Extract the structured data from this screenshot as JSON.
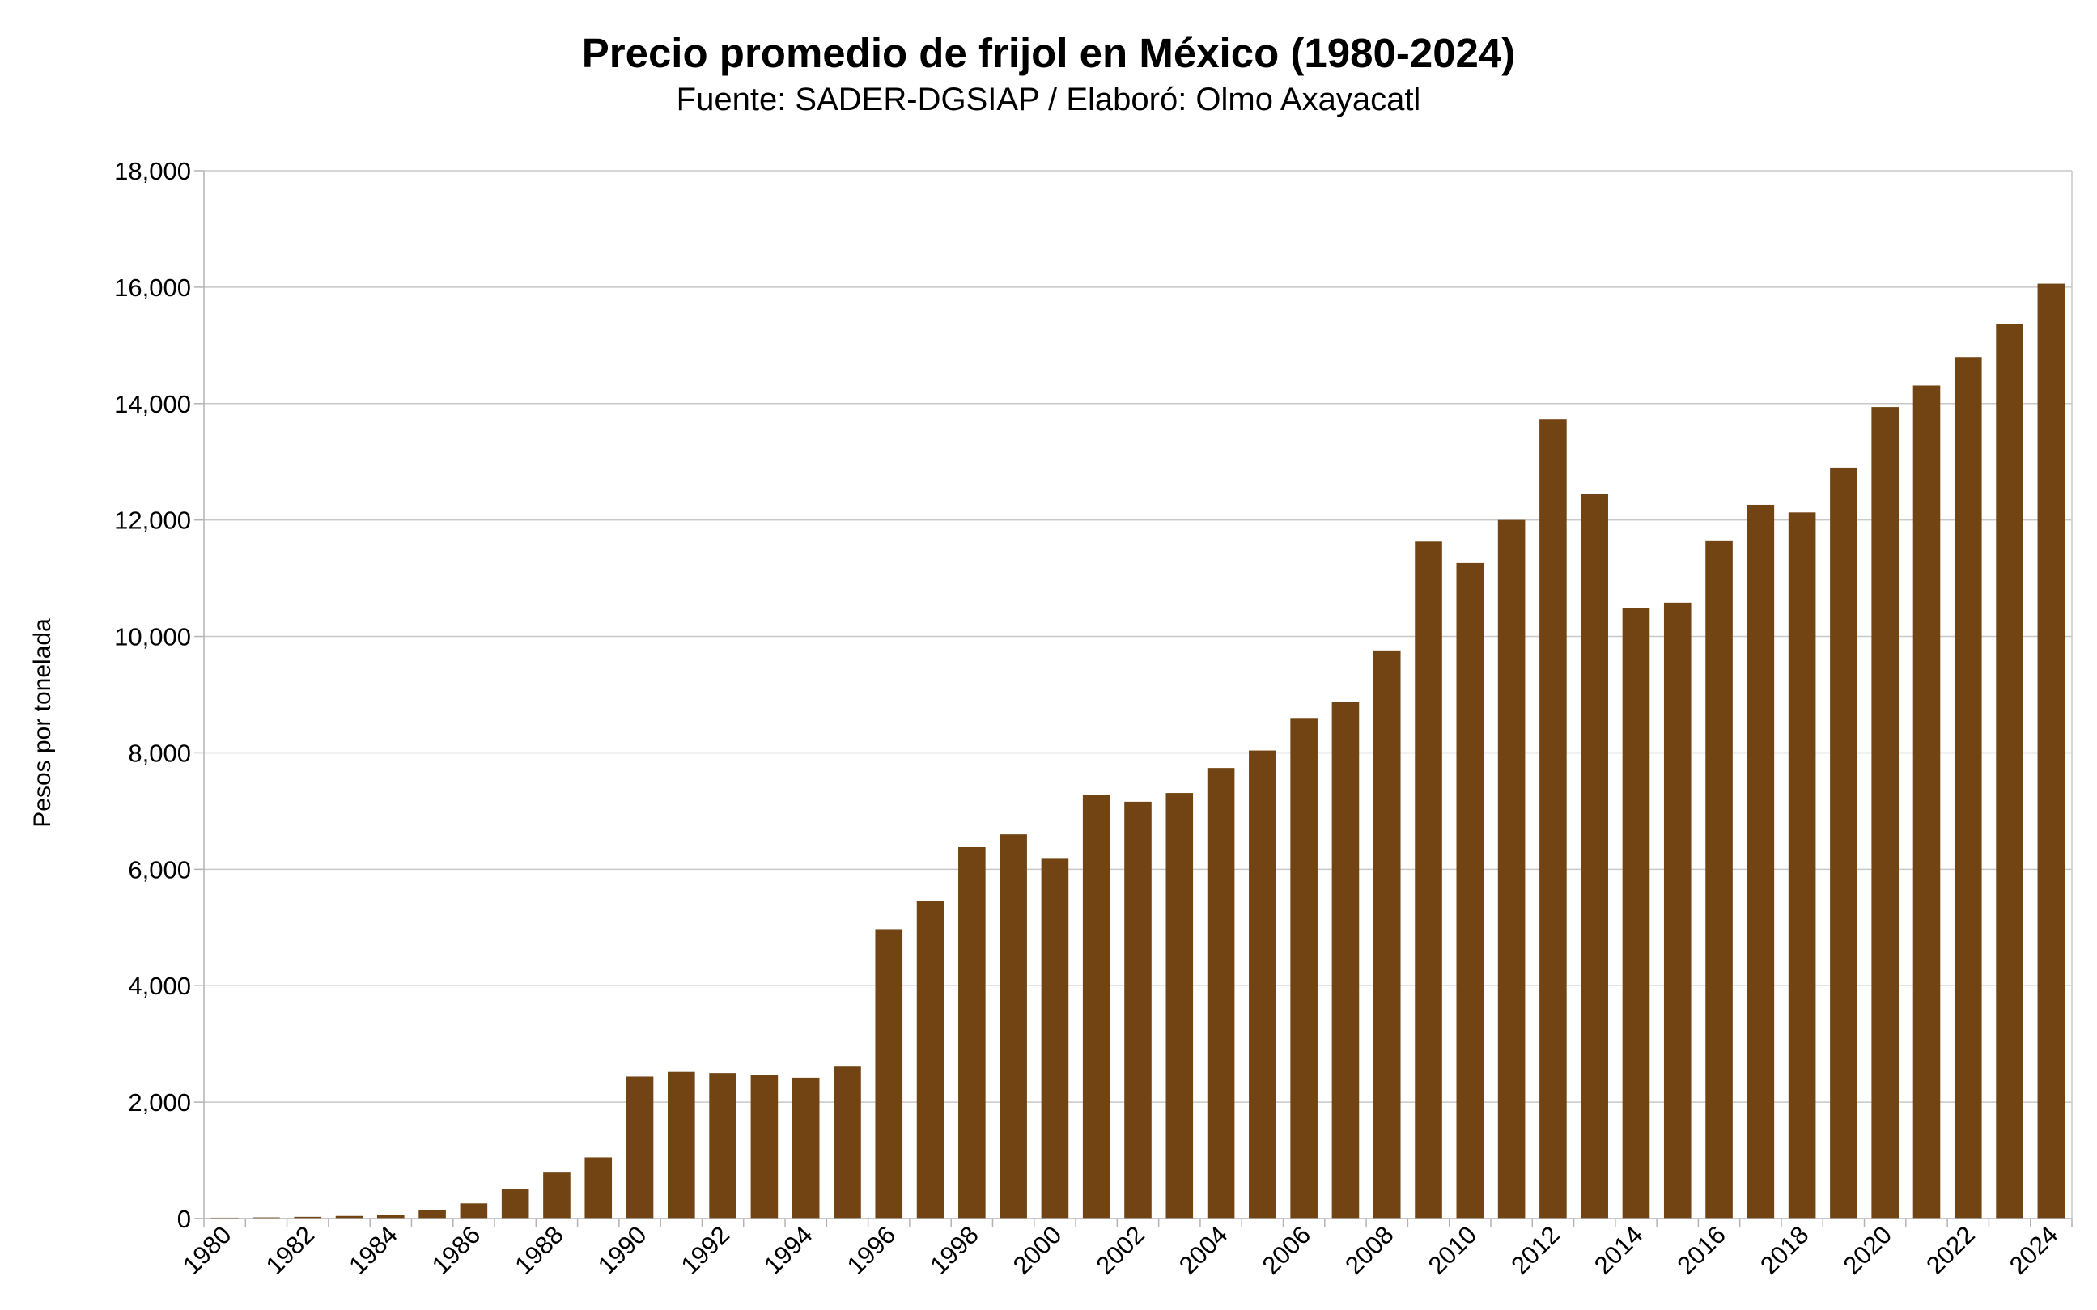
{
  "chart_data": {
    "type": "bar",
    "title": "Precio promedio de frijol en México (1980-2024)",
    "subtitle": "Fuente: SADER-DGSIAP / Elaboró: Olmo Axayacatl",
    "xlabel": "",
    "ylabel": "Pesos por tonelada",
    "ylim": [
      0,
      18000
    ],
    "yticks": [
      0,
      2000,
      4000,
      6000,
      8000,
      10000,
      12000,
      14000,
      16000,
      18000
    ],
    "ytick_labels": [
      "0",
      "2,000",
      "4,000",
      "6,000",
      "8,000",
      "10,000",
      "12,000",
      "14,000",
      "16,000",
      "18,000"
    ],
    "grid": true,
    "bar_color": "#734413",
    "categories": [
      "1980",
      "1981",
      "1982",
      "1983",
      "1984",
      "1985",
      "1986",
      "1987",
      "1988",
      "1989",
      "1990",
      "1991",
      "1992",
      "1993",
      "1994",
      "1995",
      "1996",
      "1997",
      "1998",
      "1999",
      "2000",
      "2001",
      "2002",
      "2003",
      "2004",
      "2005",
      "2006",
      "2007",
      "2008",
      "2009",
      "2010",
      "2011",
      "2012",
      "2013",
      "2014",
      "2015",
      "2016",
      "2017",
      "2018",
      "2019",
      "2020",
      "2021",
      "2022",
      "2023",
      "2024"
    ],
    "xtick_labels": [
      "1980",
      "1982",
      "1984",
      "1986",
      "1988",
      "1990",
      "1992",
      "1994",
      "1996",
      "1998",
      "2000",
      "2002",
      "2004",
      "2006",
      "2008",
      "2010",
      "2012",
      "2014",
      "2016",
      "2018",
      "2020",
      "2022",
      "2024"
    ],
    "values": [
      15,
      20,
      30,
      45,
      60,
      150,
      260,
      500,
      790,
      1050,
      2440,
      2520,
      2500,
      2470,
      2420,
      2610,
      4970,
      5460,
      6380,
      6600,
      6180,
      7280,
      7160,
      7310,
      7740,
      8040,
      8600,
      8870,
      9760,
      11630,
      11260,
      12000,
      13730,
      12440,
      10490,
      10580,
      11650,
      12260,
      12130,
      12900,
      13940,
      14310,
      14800,
      15370,
      16060
    ]
  }
}
